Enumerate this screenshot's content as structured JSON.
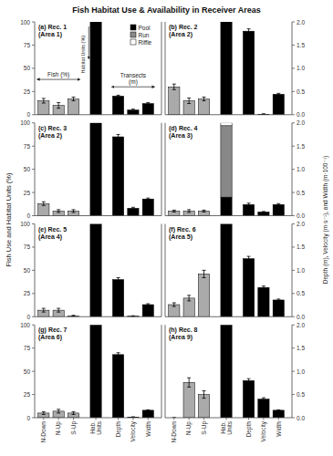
{
  "title": "Fish Habitat Use & Availability in Receiver Areas",
  "ylabel": "Fish Use and Habitat Units (%)",
  "y2label": "Depth (m), Velocity (m·s⁻¹), and Width (m·100⁻¹)",
  "chart_data": [
    {
      "type": "bar",
      "title": "(a) Rec. 1\n(Area 1)",
      "categories": [
        "N-Down",
        "N-Up",
        "S-Up",
        "Hab.\nUnits",
        "Depth",
        "Velocity",
        "Width"
      ],
      "stacked": true,
      "tick_labels": "y",
      "legend": "upper right",
      "ylim": [
        0,
        100
      ],
      "yticks": [
        0,
        25,
        50,
        75,
        100
      ],
      "y2lim": [
        0,
        2.0
      ],
      "annotations": [
        "Fish (%)",
        "Habitat Units (%)",
        "Transects\n(m)"
      ],
      "series": [
        {
          "color": "#aaaaaa",
          "values": [
            15,
            10,
            17,
            null,
            null,
            null,
            null
          ],
          "errors": [
            2.5,
            3,
            2,
            null,
            null,
            null,
            null
          ]
        },
        {
          "name": "Pool",
          "color": "#000000",
          "values": [
            null,
            null,
            null,
            100,
            null,
            null,
            null
          ]
        },
        {
          "name": "Run",
          "color": "#888888",
          "values": [
            null,
            null,
            null,
            0,
            null,
            null,
            null
          ]
        },
        {
          "name": "Riffle",
          "color": "#ffffff",
          "values": [
            null,
            null,
            null,
            0,
            null,
            null,
            null
          ]
        },
        {
          "color": "#000000",
          "axis": "y2",
          "values": [
            null,
            null,
            null,
            null,
            0.4,
            0.1,
            0.24
          ],
          "errors": [
            null,
            null,
            null,
            null,
            0.02,
            0.02,
            0.02
          ]
        }
      ]
    },
    {
      "type": "bar",
      "title": "(b) Rec. 2\n(Area 2)",
      "categories": [
        "N-Down",
        "N-Up",
        "S-Up",
        "Hab.\nUnits",
        "Depth",
        "Velocity",
        "Width"
      ],
      "stacked": true,
      "tick_labels": "y",
      "ylim": [
        0,
        100
      ],
      "y2lim": [
        0,
        2.0
      ],
      "y2ticks": [
        {
          "value": 0,
          "label": "0.0"
        },
        0.5,
        {
          "value": 1.0,
          "label": "1.0"
        },
        1.5,
        {
          "value": 2.0,
          "label": "2.0"
        }
      ],
      "series": [
        {
          "color": "#aaaaaa",
          "values": [
            30,
            15,
            17,
            null,
            null,
            null,
            null
          ],
          "errors": [
            3,
            3,
            2,
            null,
            null,
            null,
            null
          ]
        },
        {
          "color": "#000000",
          "values": [
            null,
            null,
            null,
            100,
            null,
            null,
            null
          ]
        },
        {
          "color": "#888888",
          "values": [
            null,
            null,
            null,
            0,
            null,
            null,
            null
          ]
        },
        {
          "color": "#ffffff",
          "values": [
            null,
            null,
            null,
            0,
            null,
            null,
            null
          ]
        },
        {
          "color": "#000000",
          "axis": "y2",
          "values": [
            null,
            null,
            null,
            null,
            1.8,
            0.01,
            0.44
          ],
          "errors": [
            null,
            null,
            null,
            null,
            0.05,
            0.01,
            0.02
          ]
        }
      ]
    },
    {
      "type": "bar",
      "title": "(c) Rec. 3\n(Area 2)",
      "categories": [
        "N-Down",
        "N-Up",
        "S-Up",
        "Hab.\nUnits",
        "Depth",
        "Velocity",
        "Width"
      ],
      "stacked": true,
      "tick_labels": "y",
      "ylim": [
        0,
        100
      ],
      "yticks": [
        0,
        25,
        50,
        75,
        100
      ],
      "y2lim": [
        0,
        2.0
      ],
      "series": [
        {
          "color": "#aaaaaa",
          "values": [
            13,
            5,
            5,
            null,
            null,
            null,
            null
          ],
          "errors": [
            2,
            1.5,
            1.5,
            null,
            null,
            null,
            null
          ]
        },
        {
          "color": "#000000",
          "values": [
            null,
            null,
            null,
            100,
            null,
            null,
            null
          ]
        },
        {
          "color": "#888888",
          "values": [
            null,
            null,
            null,
            0,
            null,
            null,
            null
          ]
        },
        {
          "color": "#ffffff",
          "values": [
            null,
            null,
            null,
            0,
            null,
            null,
            null
          ]
        },
        {
          "color": "#000000",
          "axis": "y2",
          "values": [
            null,
            null,
            null,
            null,
            1.7,
            0.16,
            0.36
          ],
          "errors": [
            null,
            null,
            null,
            null,
            0.05,
            0.02,
            0.02
          ]
        }
      ]
    },
    {
      "type": "bar",
      "title": "(d) Rec. 4\n(Area 3)",
      "categories": [
        "N-Down",
        "N-Up",
        "S-Up",
        "Hab.\nUnits",
        "Depth",
        "Velocity",
        "Width"
      ],
      "stacked": true,
      "tick_labels": "y",
      "ylim": [
        0,
        100
      ],
      "y2lim": [
        0,
        2.0
      ],
      "y2ticks": [
        {
          "value": 0,
          "label": "0.0"
        },
        0.5,
        {
          "value": 1.0,
          "label": "1.0"
        },
        1.5,
        {
          "value": 2.0,
          "label": "2.0"
        }
      ],
      "series": [
        {
          "color": "#aaaaaa",
          "values": [
            5,
            5,
            5,
            null,
            null,
            null,
            null
          ],
          "errors": [
            1,
            1.5,
            1,
            null,
            null,
            null,
            null
          ]
        },
        {
          "color": "#000000",
          "values": [
            null,
            null,
            null,
            20,
            null,
            null,
            null
          ]
        },
        {
          "color": "#888888",
          "values": [
            null,
            null,
            null,
            77,
            null,
            null,
            null
          ]
        },
        {
          "color": "#ffffff",
          "values": [
            null,
            null,
            null,
            3,
            null,
            null,
            null
          ]
        },
        {
          "color": "#000000",
          "axis": "y2",
          "values": [
            null,
            null,
            null,
            null,
            0.24,
            0.08,
            0.24
          ],
          "errors": [
            null,
            null,
            null,
            null,
            0.03,
            0.01,
            0.02
          ]
        }
      ]
    },
    {
      "type": "bar",
      "title": "(e) Rec. 5\n(Area 4)",
      "categories": [
        "N-Down",
        "N-Up",
        "S-Up",
        "Hab.\nUnits",
        "Depth",
        "Velocity",
        "Width"
      ],
      "stacked": true,
      "tick_labels": "y",
      "ylim": [
        0,
        100
      ],
      "yticks": [
        0,
        25,
        50,
        75,
        100
      ],
      "y2lim": [
        0,
        2.0
      ],
      "series": [
        {
          "color": "#aaaaaa",
          "values": [
            7,
            7,
            1,
            null,
            null,
            null,
            null
          ],
          "errors": [
            2,
            2,
            0.5,
            null,
            null,
            null,
            null
          ]
        },
        {
          "color": "#000000",
          "values": [
            null,
            null,
            null,
            100,
            null,
            null,
            null
          ]
        },
        {
          "color": "#888888",
          "values": [
            null,
            null,
            null,
            0,
            null,
            null,
            null
          ]
        },
        {
          "color": "#ffffff",
          "values": [
            null,
            null,
            null,
            0,
            null,
            null,
            null
          ]
        },
        {
          "color": "#000000",
          "axis": "y2",
          "values": [
            null,
            null,
            null,
            null,
            0.8,
            0.01,
            0.26
          ],
          "errors": [
            null,
            null,
            null,
            null,
            0.04,
            0.01,
            0.02
          ]
        }
      ]
    },
    {
      "type": "bar",
      "title": "(f) Rec. 6\n(Area 5)",
      "categories": [
        "N-Down",
        "N-Up",
        "S-Up",
        "Hab.\nUnits",
        "Depth",
        "Velocity",
        "Width"
      ],
      "stacked": true,
      "tick_labels": "y",
      "ylim": [
        0,
        100
      ],
      "y2lim": [
        0,
        2.0
      ],
      "y2ticks": [
        {
          "value": 0,
          "label": "0.0"
        },
        0.5,
        {
          "value": 1.0,
          "label": "1.0"
        },
        1.5,
        {
          "value": 2.0,
          "label": "2.0"
        }
      ],
      "series": [
        {
          "color": "#aaaaaa",
          "values": [
            13,
            20,
            46,
            null,
            null,
            null,
            null
          ],
          "errors": [
            2,
            3,
            4,
            null,
            null,
            null,
            null
          ]
        },
        {
          "color": "#000000",
          "values": [
            null,
            null,
            null,
            100,
            null,
            null,
            null
          ]
        },
        {
          "color": "#888888",
          "values": [
            null,
            null,
            null,
            0,
            null,
            null,
            null
          ]
        },
        {
          "color": "#ffffff",
          "values": [
            null,
            null,
            null,
            0,
            null,
            null,
            null
          ]
        },
        {
          "color": "#000000",
          "axis": "y2",
          "values": [
            null,
            null,
            null,
            null,
            1.25,
            0.63,
            0.36
          ],
          "errors": [
            null,
            null,
            null,
            null,
            0.05,
            0.03,
            0.02
          ]
        }
      ]
    },
    {
      "type": "bar",
      "title": "(g) Rec. 7\n(Area 6)",
      "categories": [
        "N-Down",
        "N-Up",
        "S-Up",
        "Hab.\nUnits",
        "Depth",
        "Velocity",
        "Width"
      ],
      "stacked": true,
      "tick_labels": true,
      "ylim": [
        0,
        100
      ],
      "yticks": [
        0,
        25,
        50,
        75,
        100
      ],
      "y2lim": [
        0,
        2.0
      ],
      "series": [
        {
          "color": "#aaaaaa",
          "values": [
            5,
            7,
            5,
            null,
            null,
            null,
            null
          ],
          "errors": [
            1.5,
            2,
            1.5,
            null,
            null,
            null,
            null
          ]
        },
        {
          "color": "#000000",
          "values": [
            null,
            null,
            null,
            100,
            null,
            null,
            null
          ]
        },
        {
          "color": "#888888",
          "values": [
            null,
            null,
            null,
            0,
            null,
            null,
            null
          ]
        },
        {
          "color": "#ffffff",
          "values": [
            null,
            null,
            null,
            0,
            null,
            null,
            null
          ]
        },
        {
          "color": "#000000",
          "axis": "y2",
          "values": [
            null,
            null,
            null,
            null,
            1.36,
            0.01,
            0.16
          ],
          "errors": [
            null,
            null,
            null,
            null,
            0.04,
            0.01,
            0.01
          ]
        }
      ]
    },
    {
      "type": "bar",
      "title": "(h) Rec. 8\n(Area 9)",
      "categories": [
        "N-Down",
        "N-Up",
        "S-Up",
        "Hab.\nUnits",
        "Depth",
        "Velocity",
        "Width"
      ],
      "stacked": true,
      "tick_labels": true,
      "ylim": [
        0,
        100
      ],
      "y2lim": [
        0,
        2.0
      ],
      "y2ticks": [
        {
          "value": 0,
          "label": "0.0"
        },
        0.5,
        {
          "value": 1.0,
          "label": "1.0"
        },
        1.5,
        {
          "value": 2.0,
          "label": "2.0"
        }
      ],
      "series": [
        {
          "color": "#aaaaaa",
          "values": [
            0,
            38,
            25,
            null,
            null,
            null,
            null
          ],
          "errors": [
            0,
            5,
            4,
            null,
            null,
            null,
            null
          ]
        },
        {
          "color": "#000000",
          "values": [
            null,
            null,
            null,
            100,
            null,
            null,
            null
          ]
        },
        {
          "color": "#888888",
          "values": [
            null,
            null,
            null,
            0,
            null,
            null,
            null
          ]
        },
        {
          "color": "#ffffff",
          "values": [
            null,
            null,
            null,
            0,
            null,
            null,
            null
          ]
        },
        {
          "color": "#000000",
          "axis": "y2",
          "values": [
            null,
            null,
            null,
            null,
            0.8,
            0.4,
            0.16
          ],
          "errors": [
            null,
            null,
            null,
            null,
            0.04,
            0.03,
            0.01
          ]
        }
      ]
    }
  ]
}
